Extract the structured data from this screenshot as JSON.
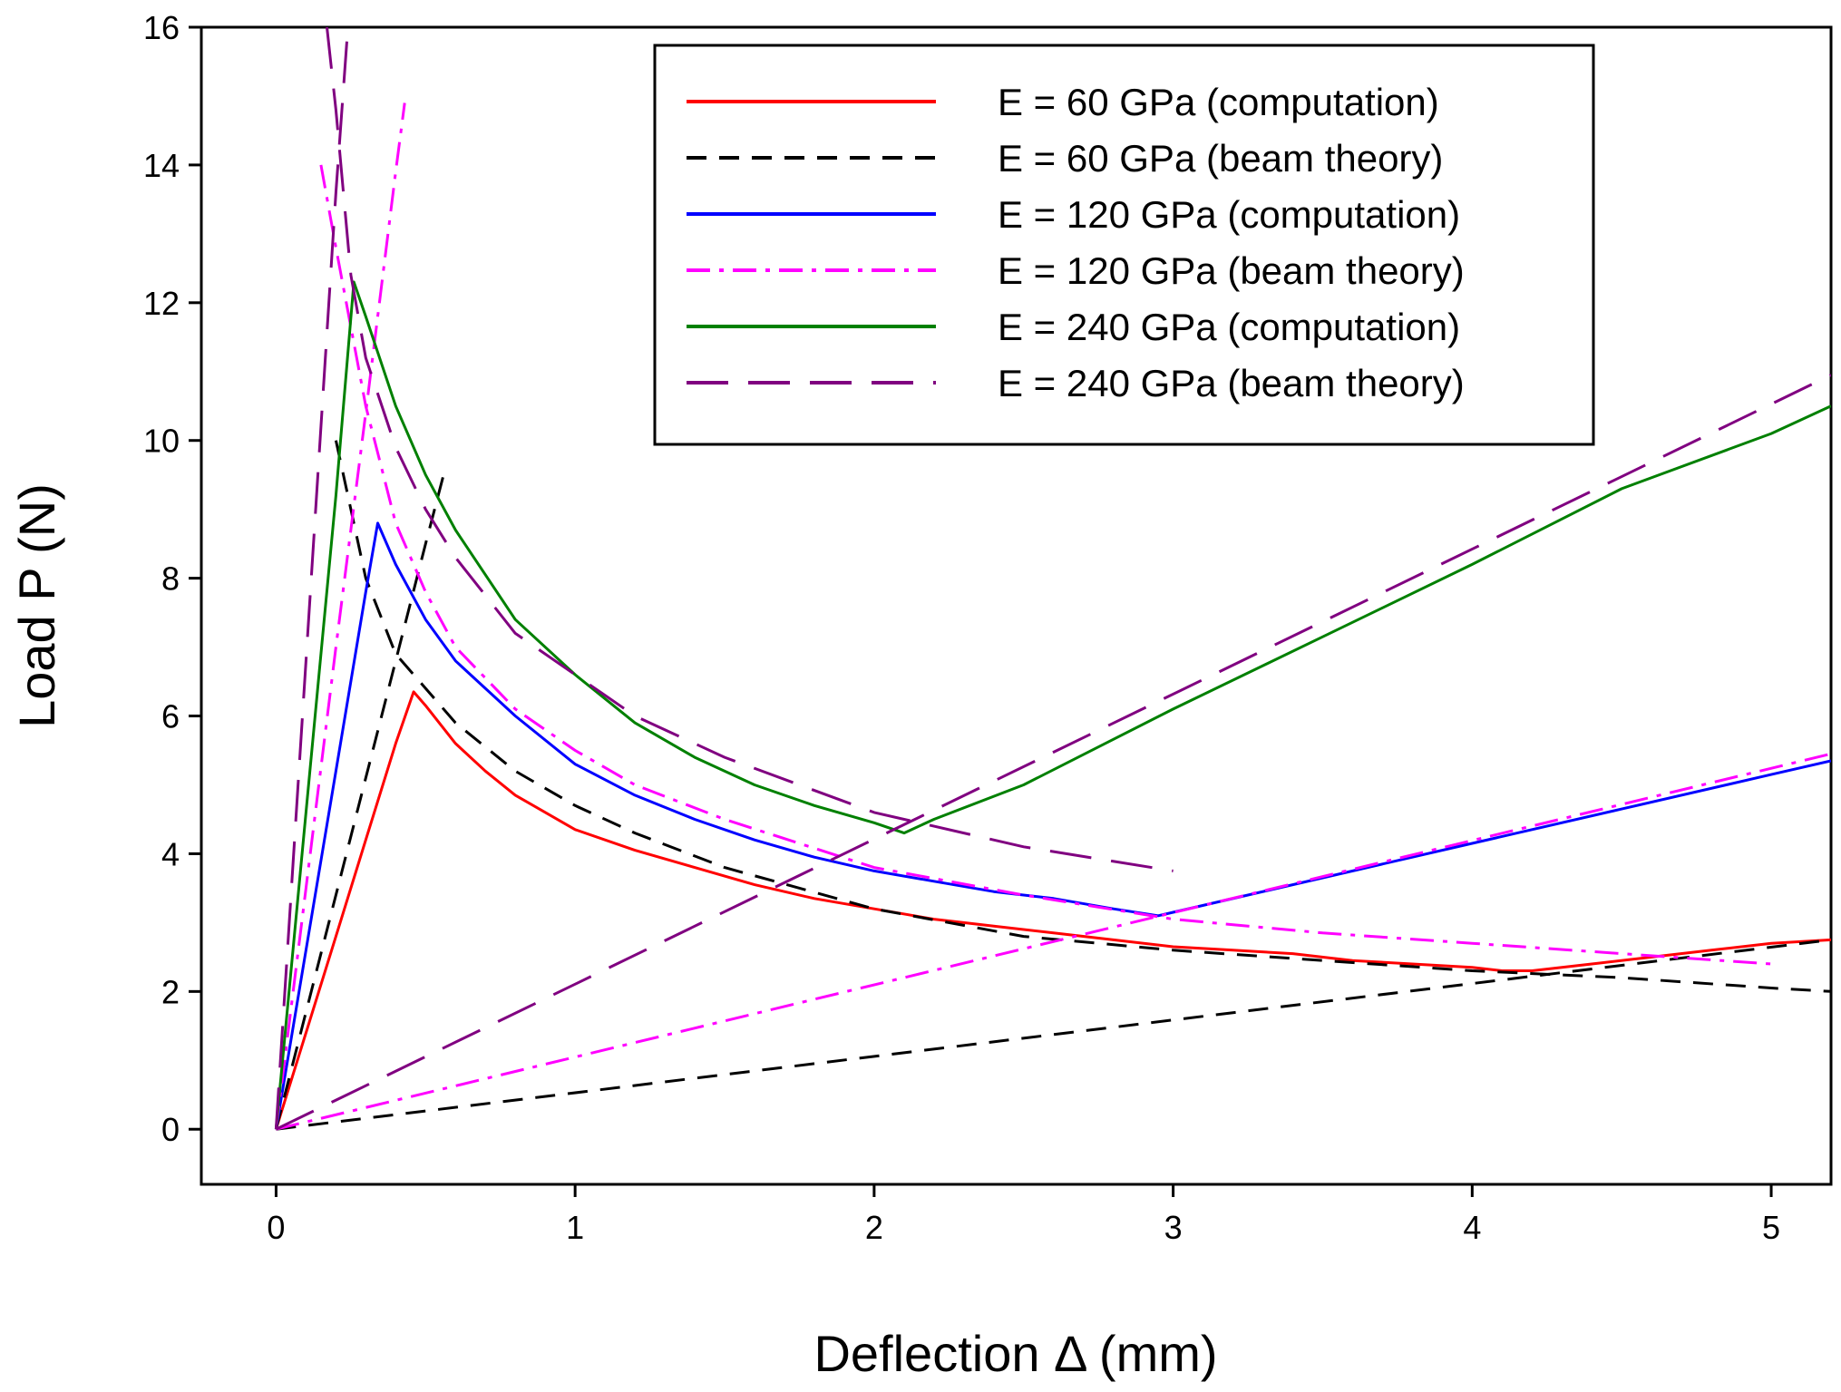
{
  "chart_data": {
    "type": "line",
    "title": "",
    "xlabel": "Deflection Δ (mm)",
    "ylabel": "Load P (N)",
    "xlim": [
      -0.25,
      5.2
    ],
    "ylim": [
      -0.8,
      16
    ],
    "xticks": [
      0,
      1,
      2,
      3,
      4,
      5
    ],
    "yticks": [
      0,
      2,
      4,
      6,
      8,
      10,
      12,
      14,
      16
    ],
    "grid": false,
    "legend_position": "top-right",
    "series": [
      {
        "name": "E = 60 GPa (computation)",
        "color": "#ff0000",
        "style": "solid",
        "x": [
          0,
          0.1,
          0.2,
          0.3,
          0.4,
          0.46,
          0.5,
          0.6,
          0.7,
          0.8,
          1.0,
          1.2,
          1.4,
          1.6,
          1.8,
          2.0,
          2.2,
          2.4,
          2.6,
          2.8,
          3.0,
          3.2,
          3.4,
          3.6,
          3.8,
          4.0,
          4.1,
          4.2,
          4.4,
          4.6,
          4.8,
          5.0,
          5.2
        ],
        "y": [
          0,
          1.4,
          2.8,
          4.2,
          5.6,
          6.35,
          6.15,
          5.6,
          5.2,
          4.85,
          4.35,
          4.05,
          3.8,
          3.55,
          3.35,
          3.2,
          3.05,
          2.95,
          2.85,
          2.75,
          2.65,
          2.6,
          2.55,
          2.45,
          2.4,
          2.35,
          2.3,
          2.3,
          2.4,
          2.5,
          2.6,
          2.7,
          2.75
        ]
      },
      {
        "name": "E = 60 GPa (beam theory)",
        "color": "#000000",
        "style": "dashed",
        "x": [
          0,
          0.1,
          0.2,
          0.3,
          0.4,
          0.5,
          0.56
        ],
        "y": [
          0,
          1.7,
          3.4,
          5.1,
          6.8,
          8.5,
          9.5
        ],
        "x2": [
          0.2,
          0.25,
          0.3,
          0.4,
          0.5,
          0.6,
          0.8,
          1.0,
          1.2,
          1.5,
          2.0,
          2.5,
          3.0,
          3.5,
          4.0,
          4.5,
          5.0,
          5.2
        ],
        "y2": [
          10.0,
          9.0,
          8.0,
          6.9,
          6.4,
          5.9,
          5.2,
          4.7,
          4.3,
          3.8,
          3.2,
          2.8,
          2.6,
          2.45,
          2.3,
          2.2,
          2.05,
          2.0
        ],
        "x3": [
          0,
          5.2
        ],
        "y3": [
          0,
          2.75
        ]
      },
      {
        "name": "E = 120 GPa (computation)",
        "color": "#0000ff",
        "style": "solid",
        "x": [
          0,
          0.1,
          0.2,
          0.3,
          0.34,
          0.4,
          0.5,
          0.6,
          0.7,
          0.8,
          1.0,
          1.2,
          1.4,
          1.6,
          1.8,
          2.0,
          2.2,
          2.4,
          2.6,
          2.8,
          2.95,
          3.0,
          3.5,
          4.0,
          4.5,
          5.0,
          5.2
        ],
        "y": [
          0,
          2.6,
          5.2,
          7.8,
          8.8,
          8.2,
          7.4,
          6.8,
          6.4,
          6.0,
          5.3,
          4.85,
          4.5,
          4.2,
          3.95,
          3.75,
          3.6,
          3.45,
          3.35,
          3.2,
          3.1,
          3.15,
          3.65,
          4.15,
          4.65,
          5.15,
          5.35
        ]
      },
      {
        "name": "E = 120 GPa (beam theory)",
        "color": "#ff00ff",
        "style": "dashdot",
        "x": [
          0,
          0.1,
          0.2,
          0.3,
          0.4,
          0.43
        ],
        "y": [
          0,
          3.5,
          7.0,
          10.4,
          13.9,
          14.9
        ],
        "x2": [
          0.15,
          0.2,
          0.3,
          0.4,
          0.5,
          0.6,
          0.8,
          1.0,
          1.2,
          1.5,
          2.0,
          2.5,
          3.0,
          3.5,
          4.0,
          4.5,
          5.0
        ],
        "y2": [
          14.0,
          12.8,
          10.5,
          8.8,
          7.8,
          7.0,
          6.1,
          5.5,
          5.0,
          4.5,
          3.8,
          3.4,
          3.05,
          2.85,
          2.7,
          2.55,
          2.4
        ],
        "x3": [
          0,
          5.2
        ],
        "y3": [
          0,
          5.45
        ]
      },
      {
        "name": "E = 240 GPa (computation)",
        "color": "#008000",
        "style": "solid",
        "x": [
          0,
          0.1,
          0.2,
          0.26,
          0.3,
          0.4,
          0.5,
          0.6,
          0.8,
          1.0,
          1.2,
          1.4,
          1.6,
          1.8,
          2.0,
          2.1,
          2.2,
          2.5,
          3.0,
          3.5,
          4.0,
          4.5,
          5.0,
          5.2
        ],
        "y": [
          0,
          4.6,
          9.2,
          12.3,
          11.8,
          10.5,
          9.5,
          8.7,
          7.4,
          6.6,
          5.9,
          5.4,
          5.0,
          4.7,
          4.45,
          4.3,
          4.5,
          5.0,
          6.1,
          7.15,
          8.2,
          9.3,
          10.1,
          10.5
        ]
      },
      {
        "name": "E = 240 GPa (beam theory)",
        "color": "#800080",
        "style": "longdash",
        "x": [
          0,
          0.1,
          0.2,
          0.24
        ],
        "y": [
          0,
          6.8,
          13.6,
          16
        ],
        "x2": [
          0.17,
          0.2,
          0.25,
          0.3,
          0.4,
          0.5,
          0.6,
          0.8,
          1.0,
          1.2,
          1.5,
          2.0,
          2.5,
          3.0
        ],
        "y2": [
          16,
          14.8,
          12.4,
          11.2,
          9.9,
          9.0,
          8.3,
          7.2,
          6.6,
          6.0,
          5.4,
          4.6,
          4.1,
          3.75
        ],
        "x3": [
          0,
          5.2
        ],
        "y3": [
          0,
          10.95
        ]
      }
    ]
  }
}
